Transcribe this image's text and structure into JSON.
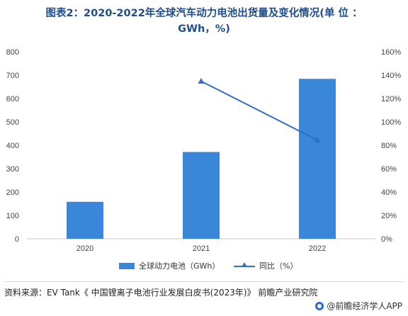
{
  "title": {
    "line1": "图表2：2020-2022年全球汽车动力电池出货量及变化情况(单 位 ：",
    "line2": "GWh，%)"
  },
  "chart_data": {
    "type": "bar",
    "categories": [
      "2020",
      "2021",
      "2022"
    ],
    "series": [
      {
        "name": "全球动力电池（GWh）",
        "type": "bar",
        "axis": "left",
        "values": [
          158,
          371,
          684
        ],
        "color": "#3a86d9"
      },
      {
        "name": "同比（%）",
        "type": "line",
        "axis": "right",
        "values": [
          null,
          134.8,
          84.4
        ],
        "color": "#2f6fc9"
      }
    ],
    "y_left": {
      "min": 0,
      "max": 800,
      "step": 100,
      "ticks": [
        "0",
        "100",
        "200",
        "300",
        "400",
        "500",
        "600",
        "700",
        "800"
      ]
    },
    "y_right": {
      "min": 0,
      "max": 160,
      "step": 20,
      "ticks": [
        "0%",
        "20%",
        "40%",
        "60%",
        "80%",
        "100%",
        "120%",
        "140%",
        "160%"
      ]
    },
    "grid": false,
    "legend_position": "bottom"
  },
  "source": "资料来源：EV Tank《 中国锂离子电池行业发展白皮书(2023年)》 前瞻产业研究院",
  "brand": "@前瞻经济学人APP"
}
